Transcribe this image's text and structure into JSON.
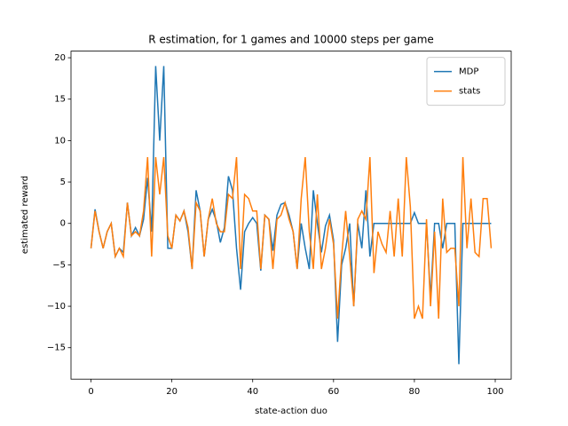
{
  "chart_data": {
    "type": "line",
    "title": "R estimation,  for 1 games and 10000 steps per game",
    "xlabel": "state-action duo",
    "ylabel": "estimated reward",
    "x": [
      0,
      1,
      2,
      3,
      4,
      5,
      6,
      7,
      8,
      9,
      10,
      11,
      12,
      13,
      14,
      15,
      16,
      17,
      18,
      19,
      20,
      21,
      22,
      23,
      24,
      25,
      26,
      27,
      28,
      29,
      30,
      31,
      32,
      33,
      34,
      35,
      36,
      37,
      38,
      39,
      40,
      41,
      42,
      43,
      44,
      45,
      46,
      47,
      48,
      49,
      50,
      51,
      52,
      53,
      54,
      55,
      56,
      57,
      58,
      59,
      60,
      61,
      62,
      63,
      64,
      65,
      66,
      67,
      68,
      69,
      70,
      71,
      72,
      73,
      74,
      75,
      76,
      77,
      78,
      79,
      80,
      81,
      82,
      83,
      84,
      85,
      86,
      87,
      88,
      89,
      90,
      91,
      92,
      93,
      94,
      95,
      96,
      97,
      98,
      99
    ],
    "series": [
      {
        "name": "MDP",
        "color": "#1f77b4",
        "values": [
          -3,
          1.7,
          -1,
          -3,
          -1,
          0,
          -4,
          -3,
          -3.5,
          2.5,
          -1.5,
          -0.5,
          -1.5,
          0.5,
          5.5,
          -1,
          19,
          10,
          19,
          -3,
          -3,
          1,
          0.3,
          1.5,
          -1,
          -5.5,
          4,
          1.5,
          -4,
          0.5,
          1.7,
          0.3,
          -2.3,
          -0.5,
          5.7,
          4,
          -3,
          -8,
          -1,
          0,
          0.7,
          0,
          -5.7,
          1,
          0.5,
          -3.3,
          1,
          2.3,
          2.5,
          1,
          -1,
          -5.5,
          0,
          -3,
          -5.5,
          4,
          0,
          -3.5,
          -0.3,
          1,
          -2,
          -14.3,
          -5,
          -3,
          0,
          -10,
          0,
          -3,
          4,
          -4,
          0,
          0,
          0,
          0,
          0,
          0,
          0,
          0,
          0,
          0,
          1.3,
          0,
          0,
          0,
          -9,
          0,
          0,
          -3,
          0,
          0,
          0,
          -17,
          0,
          0,
          0,
          0,
          0,
          0,
          0,
          0
        ]
      },
      {
        "name": "stats",
        "color": "#ff7f0e",
        "values": [
          -3,
          1.5,
          -1,
          -3,
          -1,
          0,
          -4,
          -3,
          -4,
          2.5,
          -1.5,
          -1,
          -1.5,
          1.5,
          8,
          -4,
          8,
          3.5,
          8,
          -1.5,
          -3,
          1,
          0.3,
          1.5,
          -0.5,
          -5.5,
          2.5,
          1.5,
          -4,
          0.5,
          3,
          0,
          -1,
          -1,
          3.5,
          3,
          8,
          -5.5,
          3.5,
          3,
          1.5,
          1.5,
          -5.5,
          1,
          0.5,
          -5.5,
          0.5,
          1,
          2.5,
          0.5,
          -1,
          -5.5,
          3,
          8,
          -1,
          -5.5,
          3.5,
          -5.5,
          -3,
          0.5,
          -2.5,
          -11.5,
          -4,
          1.5,
          -4,
          -10,
          0.5,
          1.5,
          0.5,
          8,
          -6,
          -1,
          -2.5,
          -3.5,
          1.5,
          -4,
          3,
          -4,
          8,
          2,
          -11.5,
          -10,
          -11.5,
          0.5,
          -10,
          -1,
          -11.5,
          3,
          -3.5,
          -3,
          -3,
          -10,
          8,
          -3,
          3,
          -3.5,
          -4,
          3,
          3,
          -3
        ]
      }
    ],
    "xlim": [
      -4.95,
      103.95
    ],
    "xticks": [
      0,
      20,
      40,
      60,
      80,
      100
    ],
    "ylim": [
      -18.8,
      20.8
    ],
    "yticks": [
      {
        "value": -15,
        "label": "−15"
      },
      {
        "value": -10,
        "label": "−10"
      },
      {
        "value": -5,
        "label": "−5"
      },
      0,
      5,
      10,
      15,
      20
    ],
    "legend": "upper right"
  }
}
